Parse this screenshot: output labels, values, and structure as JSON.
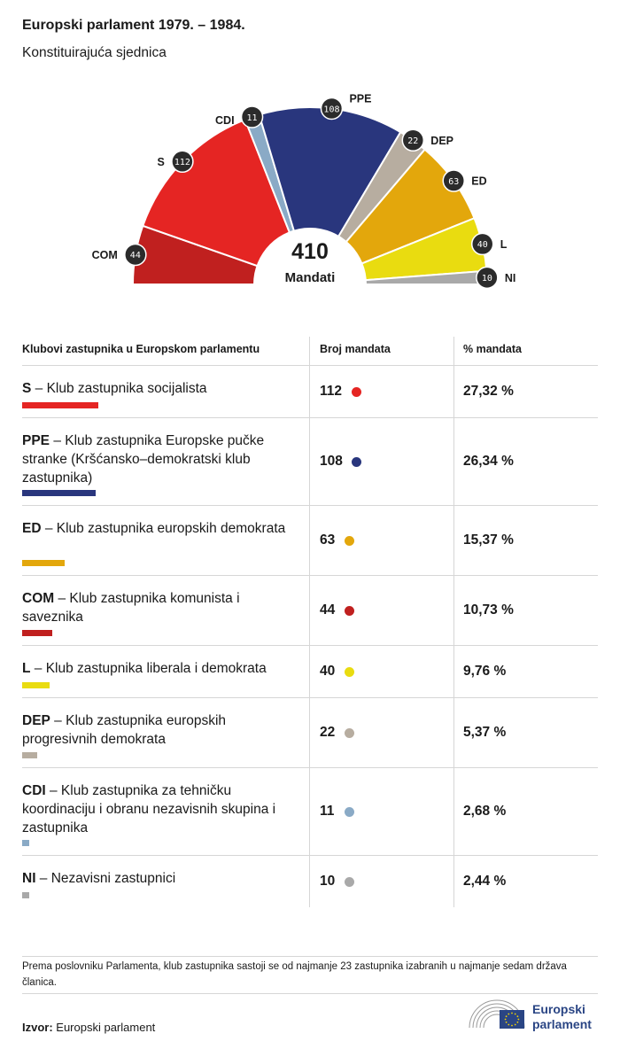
{
  "header": {
    "title": "Europski parlament 1979. – 1984.",
    "subtitle": "Konstituirajuća sjednica"
  },
  "chart_data": {
    "type": "pie",
    "subtype": "hemicycle",
    "total": 410,
    "center_value": "410",
    "center_label": "Mandati",
    "groups": [
      {
        "abbr": "COM",
        "seats": 44,
        "color": "#c0201f"
      },
      {
        "abbr": "S",
        "seats": 112,
        "color": "#e52523"
      },
      {
        "abbr": "CDI",
        "seats": 11,
        "color": "#8aaac6"
      },
      {
        "abbr": "PPE",
        "seats": 108,
        "color": "#29367d"
      },
      {
        "abbr": "DEP",
        "seats": 22,
        "color": "#b7ada0"
      },
      {
        "abbr": "ED",
        "seats": 63,
        "color": "#e3a70c"
      },
      {
        "abbr": "L",
        "seats": 40,
        "color": "#e9dc10"
      },
      {
        "abbr": "NI",
        "seats": 10,
        "color": "#a9a9a9"
      }
    ]
  },
  "table": {
    "headers": [
      "Klubovi zastupnika u Europskom parlamentu",
      "Broj mandata",
      "% mandata"
    ],
    "rows": [
      {
        "abbr": "S",
        "name": " – Klub zastupnika socijalista",
        "seats": "112",
        "pct": "27,32 %",
        "share": 0.2732,
        "color": "#e52523"
      },
      {
        "abbr": "PPE",
        "name": " – Klub zastupnika Europske pučke stranke (Kršćansko–demokratski klub zastupnika)",
        "seats": "108",
        "pct": "26,34 %",
        "share": 0.2634,
        "color": "#29367d"
      },
      {
        "abbr": "ED",
        "name": " – Klub zastupnika europskih demokrata",
        "seats": "63",
        "pct": "15,37 %",
        "share": 0.1537,
        "color": "#e3a70c"
      },
      {
        "abbr": "COM",
        "name": " – Klub zastupnika komunista i saveznika",
        "seats": "44",
        "pct": "10,73 %",
        "share": 0.1073,
        "color": "#c0201f"
      },
      {
        "abbr": "L",
        "name": " – Klub zastupnika liberala i demokrata",
        "seats": "40",
        "pct": "9,76 %",
        "share": 0.0976,
        "color": "#e9dc10"
      },
      {
        "abbr": "DEP",
        "name": " – Klub zastupnika europskih progresivnih demokrata",
        "seats": "22",
        "pct": "5,37 %",
        "share": 0.0537,
        "color": "#b7ada0"
      },
      {
        "abbr": "CDI",
        "name": " – Klub zastupnika za tehničku koordinaciju i obranu nezavisnih skupina i zastupnika",
        "seats": "11",
        "pct": "2,68 %",
        "share": 0.0268,
        "color": "#8aaac6"
      },
      {
        "abbr": "NI",
        "name": " – Nezavisni zastupnici",
        "seats": "10",
        "pct": "2,44 %",
        "share": 0.0244,
        "color": "#a9a9a9"
      }
    ]
  },
  "footer": {
    "note": "Prema poslovniku Parlamenta, klub zastupnika sastoji se od najmanje 23 zastupnika izabranih u najmanje sedam država članica.",
    "source_label": "Izvor:",
    "source_value": " Europski parlament",
    "logo_line1": "Europski",
    "logo_line2": "parlament"
  }
}
